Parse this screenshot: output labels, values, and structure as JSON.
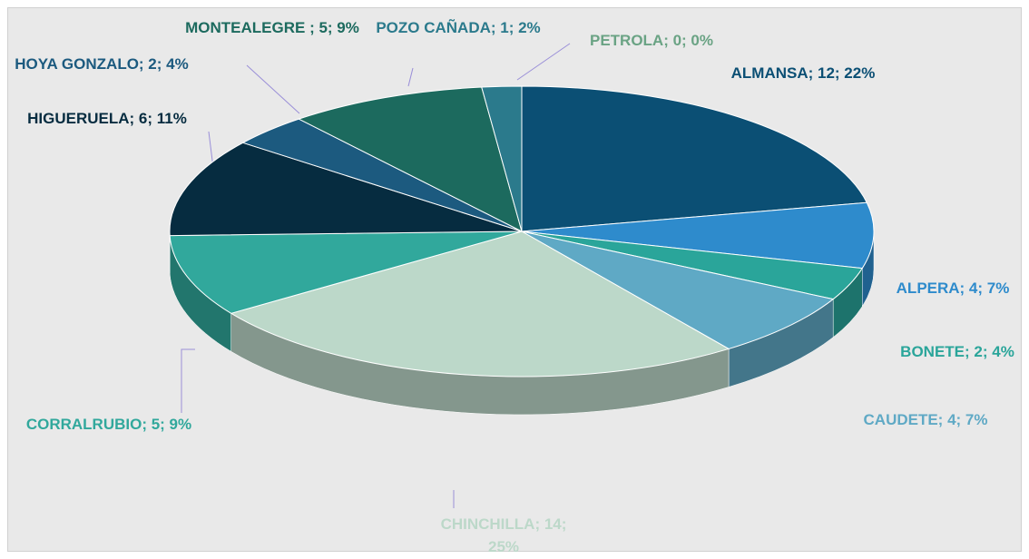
{
  "chart_data": {
    "type": "pie3d",
    "values": [
      12,
      4,
      2,
      4,
      14,
      5,
      6,
      2,
      5,
      1,
      0
    ],
    "value_labels": [
      "ALMANSA; 12; 22%",
      "ALPERA; 4; 7%",
      "BONETE; 2; 4%",
      "CAUDETE; 4; 7%",
      "CHINCHILLA; 14; 25%",
      "CORRALRUBIO; 5; 9%",
      "HIGUERUELA; 6; 11%",
      "HOYA GONZALO; 2; 4%",
      "MONTEALEGRE ; 5; 9%",
      "POZO CAÑADA; 1; 2%",
      "PETROLA; 0; 0%"
    ],
    "colors": [
      "#0b4f74",
      "#2e8bcc",
      "#2aa59a",
      "#5fa9c5",
      "#bcd8c9",
      "#31a89c",
      "#062c40",
      "#1c5a7f",
      "#1c6a5e",
      "#2b7a8c",
      "#6aa384"
    ]
  }
}
